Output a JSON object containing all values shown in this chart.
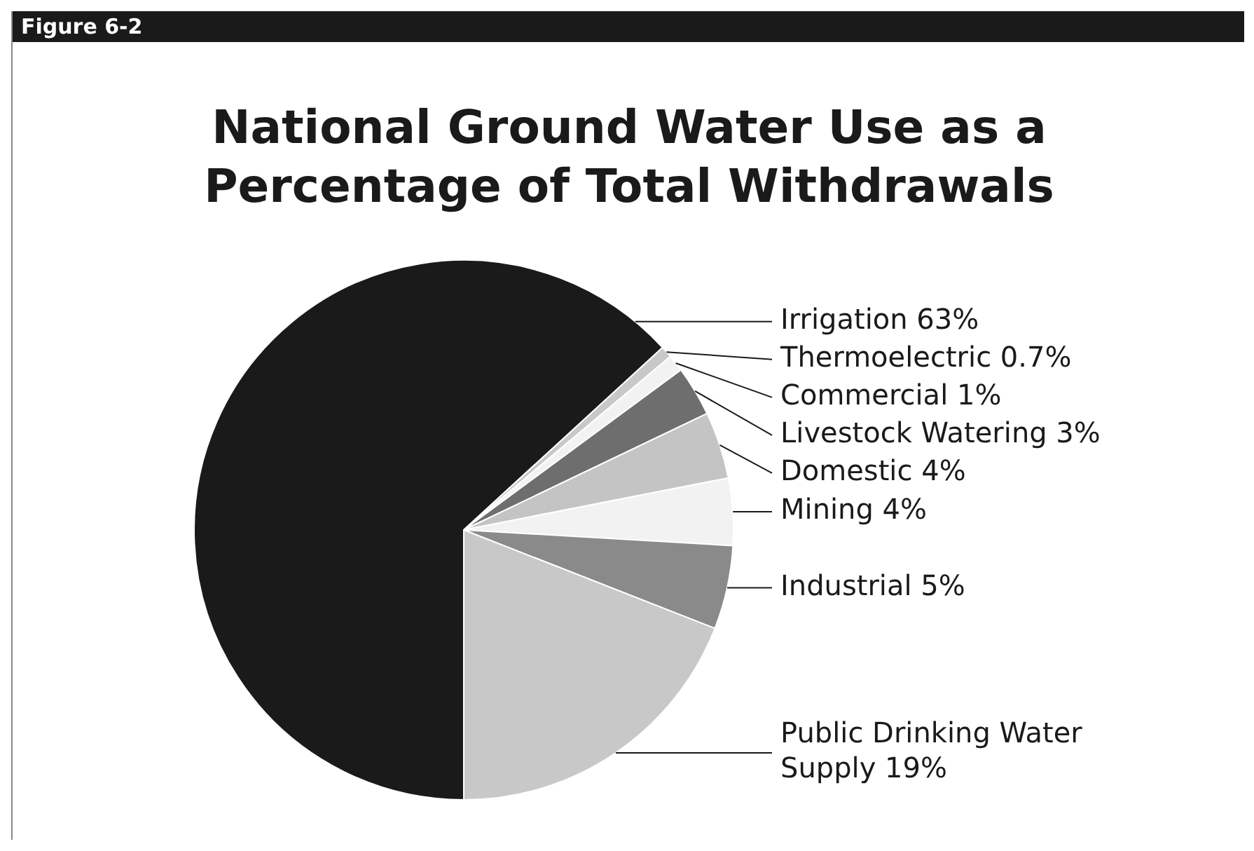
{
  "chart_data": {
    "type": "pie",
    "title": "National Ground Water Use as a Percentage of Total Withdrawals",
    "annotations": [
      "Figure 6-2"
    ],
    "categories": [
      "Irrigation",
      "Thermoelectric",
      "Commercial",
      "Livestock Watering",
      "Domestic",
      "Mining",
      "Industrial",
      "Public Drinking Water Supply"
    ],
    "values": [
      63,
      0.7,
      1,
      3,
      4,
      4,
      5,
      19
    ],
    "value_labels": [
      "63%",
      "0.7%",
      "1%",
      "3%",
      "4%",
      "4%",
      "5%",
      "19%"
    ],
    "colors": [
      "#1a1a1a",
      "#c8c8c8",
      "#f2f2f2",
      "#6e6e6e",
      "#c4c4c4",
      "#f2f2f2",
      "#8a8a8a",
      "#c8c8c8"
    ],
    "legend": false
  }
}
